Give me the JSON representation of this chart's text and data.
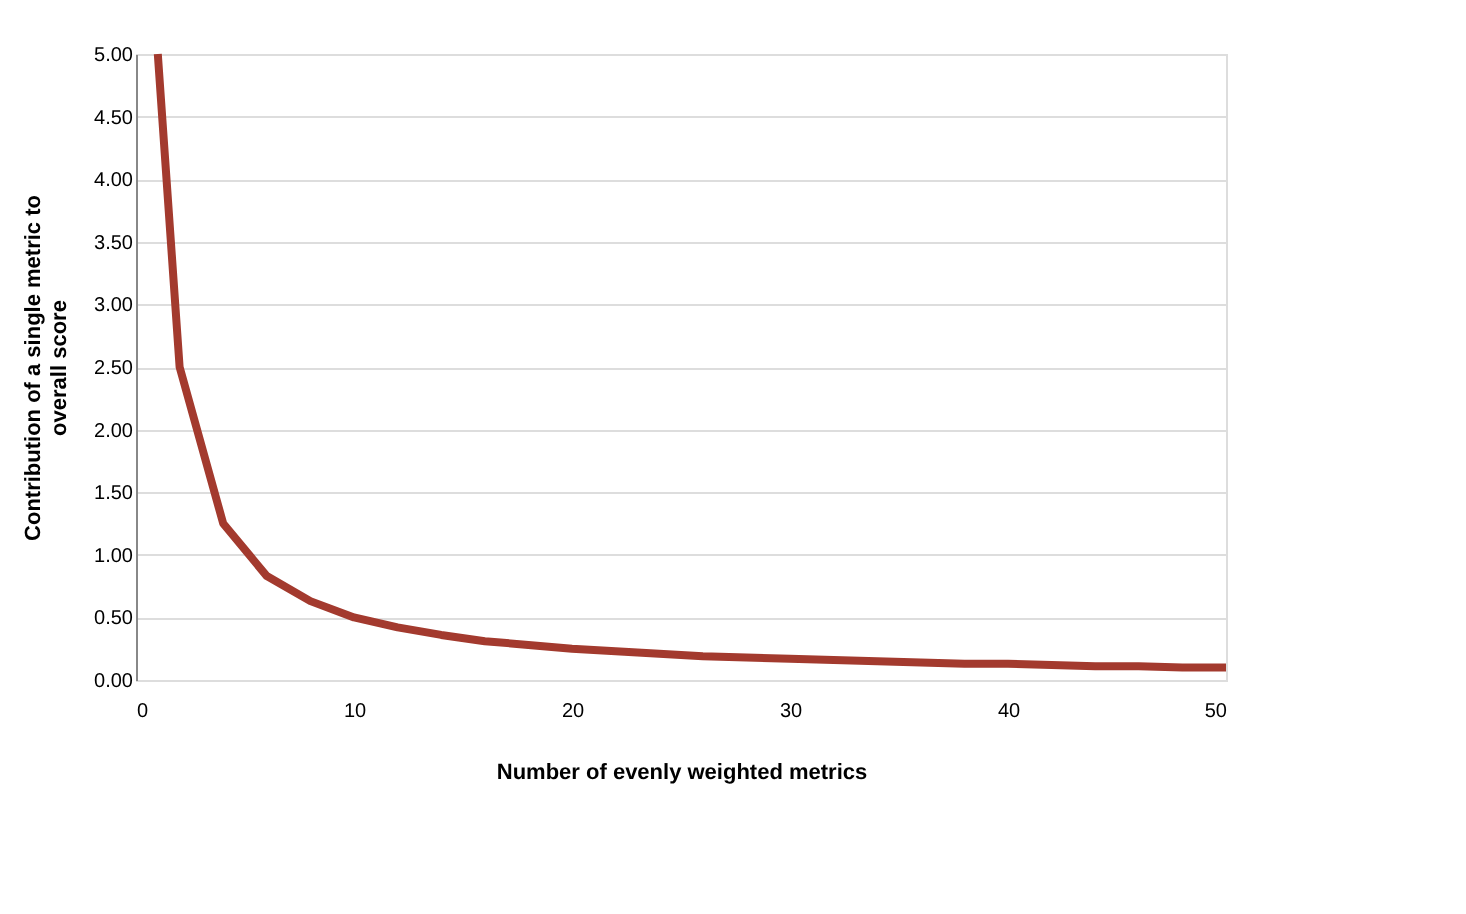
{
  "chart_data": {
    "type": "line",
    "xlabel": "Number of evenly weighted metrics",
    "ylabel": "Contribution of a single metric to\noverall score",
    "x": [
      1,
      2,
      4,
      6,
      8,
      10,
      12,
      14,
      16,
      18,
      20,
      22,
      24,
      26,
      28,
      30,
      32,
      34,
      36,
      38,
      40,
      42,
      44,
      46,
      48,
      50
    ],
    "series": [
      {
        "color": "#a33a2e",
        "values": [
          5.0,
          2.5,
          1.25,
          0.83,
          0.63,
          0.5,
          0.42,
          0.36,
          0.31,
          0.28,
          0.25,
          0.23,
          0.21,
          0.19,
          0.18,
          0.17,
          0.16,
          0.15,
          0.14,
          0.13,
          0.13,
          0.12,
          0.11,
          0.11,
          0.1,
          0.1
        ]
      }
    ],
    "xlim": [
      0,
      50
    ],
    "xticks": [
      0,
      10,
      20,
      30,
      40,
      50
    ],
    "ylim": [
      0,
      5
    ],
    "yticks": [
      {
        "value": 0,
        "label": "0.00"
      },
      {
        "value": 0.5,
        "label": "0.50"
      },
      {
        "value": 1,
        "label": "1.00"
      },
      {
        "value": 1.5,
        "label": "1.50"
      },
      {
        "value": 2,
        "label": "2.00"
      },
      {
        "value": 2.5,
        "label": "2.50"
      },
      {
        "value": 3,
        "label": "3.00"
      },
      {
        "value": 3.5,
        "label": "3.50"
      },
      {
        "value": 4,
        "label": "4.00"
      },
      {
        "value": 4.5,
        "label": "4.50"
      },
      {
        "value": 5,
        "label": "5.00"
      }
    ],
    "grid": "y",
    "legend": false,
    "marker": "none",
    "line_style": "solid"
  }
}
